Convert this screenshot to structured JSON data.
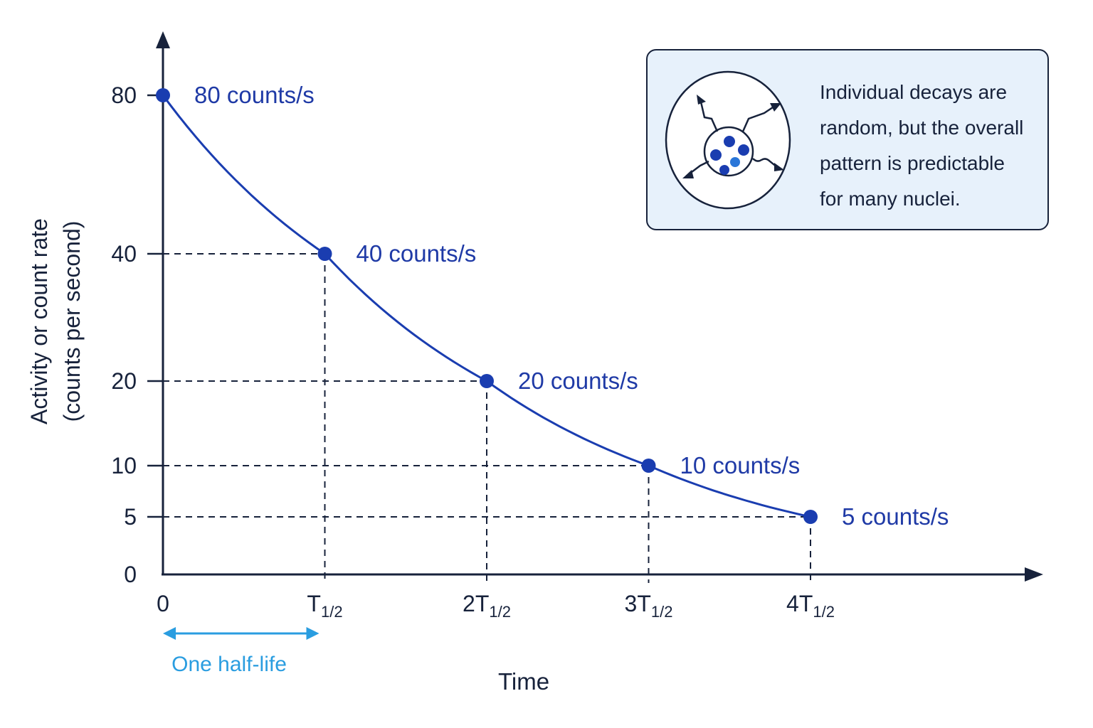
{
  "chart_data": {
    "type": "line",
    "title": "",
    "xlabel": "Time",
    "ylabel_lines": [
      "Activity or count rate",
      "(counts per second)"
    ],
    "x_ticks": [
      {
        "main": "0",
        "sub": ""
      },
      {
        "main": "T",
        "sub": "1/2"
      },
      {
        "main": "2T",
        "sub": "1/2"
      },
      {
        "main": "3T",
        "sub": "1/2"
      },
      {
        "main": "4T",
        "sub": "1/2"
      }
    ],
    "y_ticks": [
      "0",
      "5",
      "10",
      "20",
      "40",
      "80"
    ],
    "x_unit": "half-lives",
    "series": [
      {
        "x": [
          0,
          1,
          2,
          3,
          4
        ],
        "y": [
          80,
          40,
          20,
          10,
          5
        ],
        "point_labels": [
          "80 counts/s",
          "40 counts/s",
          "20 counts/s",
          "10 counts/s",
          "5 counts/s"
        ]
      }
    ],
    "guides": "dashed lines from each point to both axes",
    "annotation": {
      "text": "One half-life",
      "from_x": 0,
      "to_x": 1
    },
    "colors": {
      "curve": "#1a3db0",
      "point_label": "#1f3aa6",
      "axis": "#17223b",
      "annotation": "#2a9de0"
    }
  },
  "callout": {
    "lines": [
      "Individual decays are",
      "random, but the overall",
      "pattern is predictable",
      "for many nuclei."
    ],
    "icon": "atom-nucleus-decay-icon",
    "background": "#e7f1fb"
  }
}
